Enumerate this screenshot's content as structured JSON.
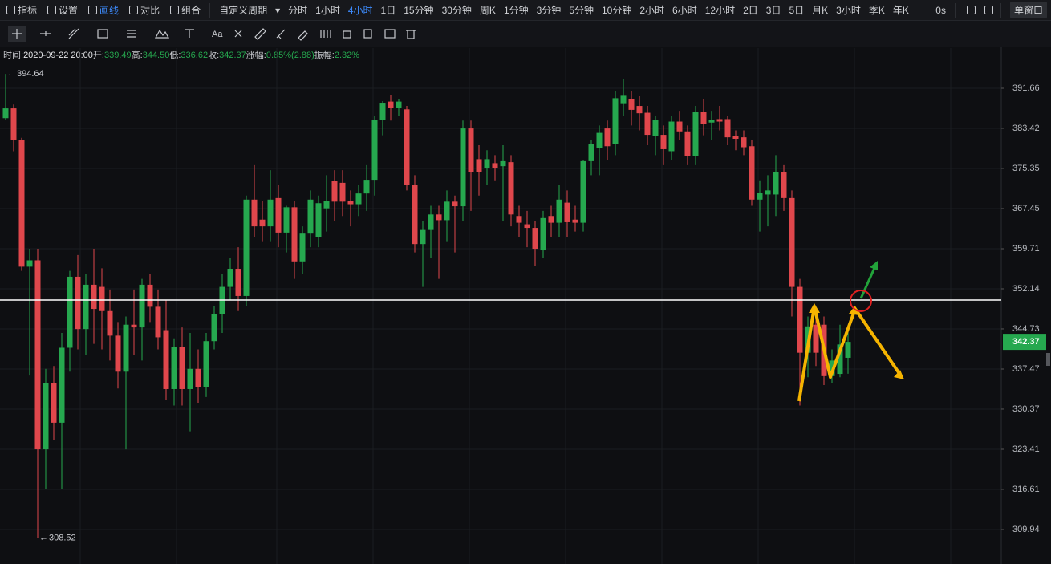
{
  "toolbar": {
    "tools": [
      "指标",
      "设置",
      "画线",
      "对比",
      "组合"
    ],
    "period_menu": "自定义周期",
    "periods": [
      {
        "label": "分时"
      },
      {
        "label": "1小时"
      },
      {
        "label": "4小时",
        "active": true
      },
      {
        "label": "1日"
      },
      {
        "label": "15分钟"
      },
      {
        "label": "30分钟"
      },
      {
        "label": "周K"
      },
      {
        "label": "1分钟"
      },
      {
        "label": "3分钟"
      },
      {
        "label": "5分钟"
      },
      {
        "label": "10分钟"
      },
      {
        "label": "2小时"
      },
      {
        "label": "6小时"
      },
      {
        "label": "12小时"
      },
      {
        "label": "2日"
      },
      {
        "label": "3日"
      },
      {
        "label": "5日"
      },
      {
        "label": "月K"
      },
      {
        "label": "3小时"
      },
      {
        "label": "季K"
      },
      {
        "label": "年K"
      }
    ],
    "timer": "0s",
    "window_mode": "单窗口"
  },
  "draw_tools": {
    "text_tool": "Aa"
  },
  "info": [
    {
      "label": "时间:",
      "value": "2020-09-22 20:00"
    },
    {
      "label": "开:",
      "value": "339.49"
    },
    {
      "label": "高:",
      "value": "344.50"
    },
    {
      "label": "低:",
      "value": "336.62"
    },
    {
      "label": "收:",
      "value": "342.37"
    },
    {
      "label": "涨幅:",
      "value": "0.85%(2.88)"
    },
    {
      "label": "振幅:",
      "value": "2.32%"
    }
  ],
  "chart_data": {
    "type": "candlestick",
    "log": true,
    "grid": true,
    "up_color": "#26a84f",
    "down_color": "#e0474c",
    "ylim": [
      304.32,
      400.08
    ],
    "yticks": [
      391.66,
      383.42,
      375.35,
      367.45,
      359.71,
      352.14,
      344.73,
      337.47,
      330.37,
      323.41,
      316.61,
      309.94
    ],
    "ohlc": [
      [
        385.5,
        394.64,
        385.2,
        387.5
      ],
      [
        387.5,
        388.3,
        378.8,
        381.0
      ],
      [
        381.0,
        381.5,
        355.5,
        356.3
      ],
      [
        356.3,
        359.7,
        336.3,
        357.5
      ],
      [
        357.5,
        359.7,
        308.52,
        323.4
      ],
      [
        323.4,
        337.5,
        316.6,
        334.9
      ],
      [
        334.9,
        338.0,
        325.0,
        328.0
      ],
      [
        328.0,
        344.0,
        316.6,
        341.3
      ],
      [
        341.3,
        355.5,
        337.0,
        354.4
      ],
      [
        354.4,
        358.5,
        341.0,
        344.7
      ],
      [
        344.7,
        355.0,
        340.0,
        352.9
      ],
      [
        352.9,
        359.7,
        342.0,
        348.4
      ],
      [
        352.5,
        356.0,
        341.0,
        348.0
      ],
      [
        348.0,
        352.0,
        339.0,
        343.5
      ],
      [
        343.5,
        346.0,
        334.0,
        337.0
      ],
      [
        337.0,
        347.0,
        323.4,
        345.5
      ],
      [
        345.5,
        352.0,
        340.0,
        345.0
      ],
      [
        345.0,
        354.0,
        339.0,
        352.9
      ],
      [
        352.9,
        355.0,
        346.0,
        348.8
      ],
      [
        348.8,
        352.0,
        341.0,
        343.2
      ],
      [
        344.5,
        350.0,
        332.0,
        333.9
      ],
      [
        333.9,
        343.0,
        331.0,
        341.5
      ],
      [
        341.5,
        345.0,
        331.0,
        333.9
      ],
      [
        333.9,
        344.0,
        326.5,
        337.5
      ],
      [
        337.5,
        341.0,
        331.5,
        334.2
      ],
      [
        334.2,
        344.0,
        332.5,
        342.5
      ],
      [
        342.5,
        349.0,
        341.0,
        347.5
      ],
      [
        347.5,
        355.0,
        344.0,
        352.5
      ],
      [
        352.5,
        358.0,
        350.0,
        355.9
      ],
      [
        355.9,
        360.0,
        348.0,
        350.8
      ],
      [
        350.8,
        370.0,
        349.0,
        369.2
      ],
      [
        369.2,
        376.0,
        362.0,
        364.0
      ],
      [
        365.3,
        369.0,
        361.0,
        364.0
      ],
      [
        364.0,
        375.0,
        361.0,
        369.2
      ],
      [
        369.5,
        372.0,
        360.0,
        362.8
      ],
      [
        362.8,
        368.0,
        359.0,
        367.7
      ],
      [
        367.7,
        369.0,
        354.0,
        357.3
      ],
      [
        357.3,
        364.0,
        355.0,
        362.6
      ],
      [
        362.6,
        371.0,
        360.0,
        369.2
      ],
      [
        362.0,
        370.0,
        360.0,
        368.5
      ],
      [
        367.5,
        374.0,
        363.0,
        369.0
      ],
      [
        372.8,
        375.0,
        365.0,
        368.8
      ],
      [
        372.5,
        375.0,
        366.0,
        368.8
      ],
      [
        369.0,
        371.0,
        364.0,
        368.3
      ],
      [
        368.3,
        372.0,
        366.0,
        370.4
      ],
      [
        370.4,
        376.0,
        367.0,
        373.1
      ],
      [
        373.1,
        386.0,
        370.0,
        385.1
      ],
      [
        385.1,
        389.0,
        382.0,
        388.5
      ],
      [
        388.9,
        390.3,
        385.0,
        387.6
      ],
      [
        387.6,
        389.5,
        386.0,
        388.9
      ],
      [
        387.3,
        388.0,
        371.0,
        372.1
      ],
      [
        372.1,
        374.0,
        359.0,
        360.6
      ],
      [
        360.6,
        365.0,
        352.5,
        363.3
      ],
      [
        363.3,
        368.0,
        358.0,
        366.3
      ],
      [
        366.3,
        368.0,
        354.0,
        365.2
      ],
      [
        365.2,
        371.0,
        361.0,
        368.8
      ],
      [
        368.8,
        370.0,
        359.0,
        367.9
      ],
      [
        367.9,
        385.0,
        365.0,
        383.4
      ],
      [
        383.4,
        385.0,
        367.0,
        374.7
      ],
      [
        377.2,
        380.0,
        370.0,
        374.7
      ],
      [
        375.4,
        379.0,
        372.0,
        377.2
      ],
      [
        376.4,
        378.0,
        373.0,
        375.4
      ],
      [
        375.8,
        380.0,
        365.0,
        376.8
      ],
      [
        376.6,
        378.0,
        364.0,
        366.3
      ],
      [
        366.0,
        368.0,
        362.0,
        364.7
      ],
      [
        364.4,
        367.0,
        360.0,
        363.7
      ],
      [
        363.7,
        365.0,
        356.5,
        359.7
      ],
      [
        359.4,
        367.0,
        358.0,
        365.6
      ],
      [
        366.0,
        368.0,
        362.0,
        364.7
      ],
      [
        364.7,
        372.0,
        362.0,
        369.2
      ],
      [
        368.6,
        371.0,
        362.0,
        364.8
      ],
      [
        365.3,
        368.0,
        363.0,
        364.7
      ],
      [
        364.7,
        377.0,
        363.0,
        376.8
      ],
      [
        376.8,
        381.0,
        374.0,
        380.2
      ],
      [
        379.4,
        384.0,
        374.0,
        382.5
      ],
      [
        383.4,
        385.0,
        377.0,
        379.8
      ],
      [
        380.2,
        391.0,
        378.0,
        389.6
      ],
      [
        388.4,
        393.5,
        386.0,
        390.1
      ],
      [
        389.5,
        391.0,
        384.0,
        387.2
      ],
      [
        388.0,
        390.0,
        383.0,
        386.5
      ],
      [
        386.6,
        388.0,
        380.0,
        382.1
      ],
      [
        381.9,
        386.0,
        378.0,
        385.1
      ],
      [
        382.1,
        384.0,
        376.0,
        379.2
      ],
      [
        378.8,
        386.0,
        377.0,
        384.8
      ],
      [
        384.8,
        387.0,
        381.0,
        382.8
      ],
      [
        382.8,
        384.0,
        376.0,
        377.8
      ],
      [
        377.8,
        388.0,
        376.0,
        386.7
      ],
      [
        386.7,
        389.5,
        382.0,
        384.3
      ],
      [
        384.6,
        387.0,
        381.0,
        385.1
      ],
      [
        385.3,
        388.0,
        383.0,
        384.8
      ],
      [
        385.3,
        386.0,
        380.0,
        381.6
      ],
      [
        381.8,
        383.0,
        379.0,
        381.3
      ],
      [
        381.6,
        383.0,
        378.0,
        379.6
      ],
      [
        379.8,
        381.0,
        368.0,
        369.2
      ],
      [
        369.2,
        373.0,
        363.0,
        370.5
      ],
      [
        370.2,
        374.0,
        364.0,
        371.0
      ],
      [
        370.2,
        378.0,
        366.0,
        374.7
      ],
      [
        374.7,
        376.0,
        367.0,
        369.5
      ],
      [
        369.5,
        371.0,
        347.0,
        352.5
      ],
      [
        352.5,
        354.0,
        331.0,
        340.4
      ],
      [
        340.4,
        347.0,
        336.0,
        345.2
      ],
      [
        345.5,
        348.0,
        338.0,
        340.4
      ],
      [
        345.5,
        347.0,
        334.6,
        336.2
      ],
      [
        336.2,
        341.0,
        335.0,
        339.0
      ],
      [
        336.6,
        345.5,
        336.0,
        341.9
      ],
      [
        339.49,
        344.5,
        336.62,
        342.37
      ]
    ]
  }
}
